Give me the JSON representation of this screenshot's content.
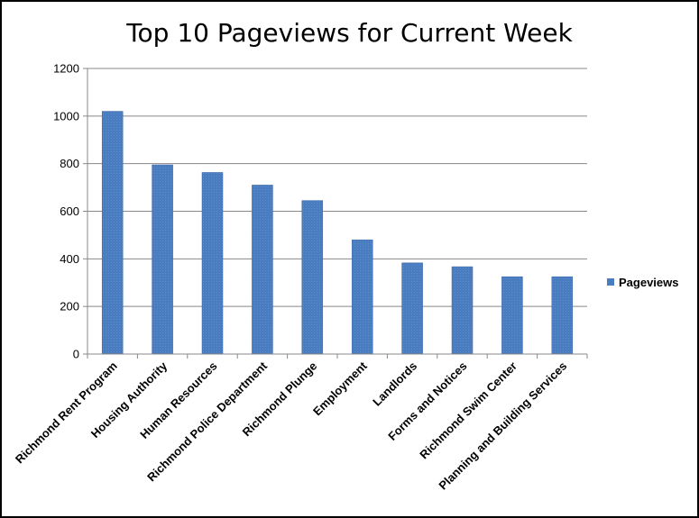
{
  "chart_data": {
    "type": "bar",
    "title": "Top 10 Pageviews for Current Week",
    "categories": [
      "Richmond Rent Program",
      "Housing Authority",
      "Human Resources",
      "Richmond Police Department",
      "Richmond Plunge",
      "Employment",
      "Landlords",
      "Forms and Notices",
      "Richmond Swim Center",
      "Planning and Building Services"
    ],
    "series": [
      {
        "name": "Pageviews",
        "values": [
          1020,
          795,
          763,
          710,
          645,
          480,
          383,
          367,
          325,
          325
        ]
      }
    ],
    "ylim": [
      0,
      1200
    ],
    "yticks": [
      0,
      200,
      400,
      600,
      800,
      1000,
      1200
    ],
    "grid": true,
    "legend": "right",
    "colors": {
      "bar": "#4a7cc0",
      "bar_dark": "#3a66a8",
      "grid": "#888888",
      "axis": "#888888"
    }
  }
}
